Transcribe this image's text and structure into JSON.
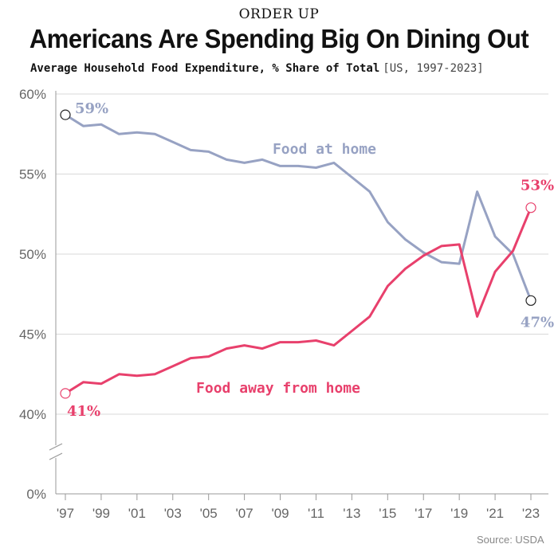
{
  "header": {
    "kicker": "ORDER UP",
    "title": "Americans Are Spending Big On Dining Out",
    "subtitle": "Average Household Food Expenditure, % Share of Total",
    "subtitle_range": "[US, 1997-2023]"
  },
  "source": "Source: USDA",
  "colors": {
    "food_at_home": "#97a2c3",
    "food_away": "#e8406c",
    "grid": "#d9d9d9",
    "axis_text": "#666666"
  },
  "chart_data": {
    "type": "line",
    "title": "Americans Are Spending Big On Dining Out",
    "subtitle": "Average Household Food Expenditure, % Share of Total",
    "x": [
      1997,
      1998,
      1999,
      2000,
      2001,
      2002,
      2003,
      2004,
      2005,
      2006,
      2007,
      2008,
      2009,
      2010,
      2011,
      2012,
      2013,
      2014,
      2015,
      2016,
      2017,
      2018,
      2019,
      2020,
      2021,
      2022,
      2023
    ],
    "xtick_labels": [
      "'97",
      "'99",
      "'01",
      "'03",
      "'05",
      "'07",
      "'09",
      "'11",
      "'13",
      "'15",
      "'17",
      "'19",
      "'21",
      "'23"
    ],
    "xtick_values": [
      1997,
      1999,
      2001,
      2003,
      2005,
      2007,
      2009,
      2011,
      2013,
      2015,
      2017,
      2019,
      2021,
      2023
    ],
    "ytick_labels": [
      "0%",
      "40%",
      "45%",
      "50%",
      "55%",
      "60%"
    ],
    "ytick_values": [
      0,
      40,
      45,
      50,
      55,
      60
    ],
    "ylim": [
      0,
      60
    ],
    "y_axis_break": [
      0,
      40
    ],
    "grid": true,
    "series": [
      {
        "name": "Food at home",
        "color": "#97a2c3",
        "values": [
          58.7,
          58.0,
          58.1,
          57.5,
          57.6,
          57.5,
          57.0,
          56.5,
          56.4,
          55.9,
          55.7,
          55.9,
          55.5,
          55.5,
          55.4,
          55.7,
          54.8,
          53.9,
          52.0,
          50.9,
          50.1,
          49.5,
          49.4,
          53.9,
          51.1,
          50.0,
          47.1
        ],
        "start_label": "59%",
        "end_label": "47%"
      },
      {
        "name": "Food away from home",
        "color": "#e8406c",
        "values": [
          41.3,
          42.0,
          41.9,
          42.5,
          42.4,
          42.5,
          43.0,
          43.5,
          43.6,
          44.1,
          44.3,
          44.1,
          44.5,
          44.5,
          44.6,
          44.3,
          45.2,
          46.1,
          48.0,
          49.1,
          49.9,
          50.5,
          50.6,
          46.1,
          48.9,
          50.2,
          52.9
        ],
        "start_label": "41%",
        "end_label": "53%"
      }
    ]
  }
}
